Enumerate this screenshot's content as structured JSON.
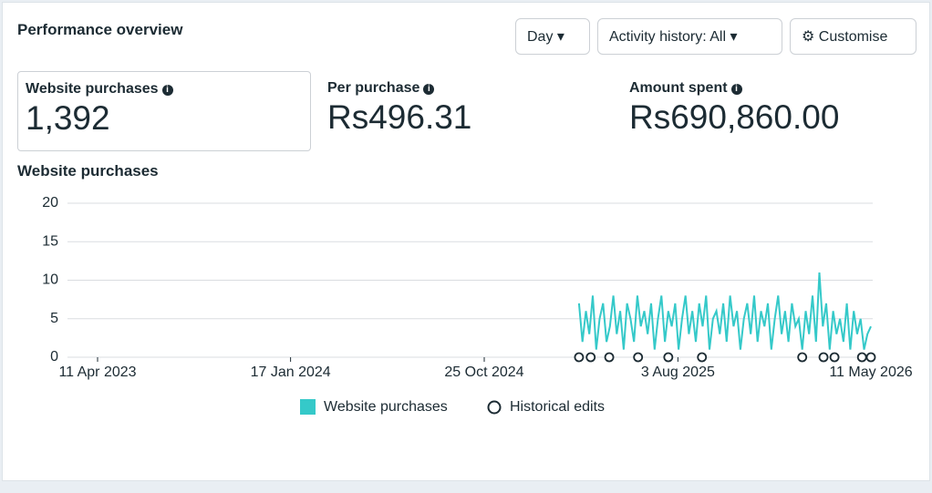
{
  "header": {
    "title": "Performance overview",
    "buttons": [
      "Day",
      "Activity history: All",
      "Customise"
    ]
  },
  "metrics": [
    {
      "label": "Website purchases",
      "value": "1,392"
    },
    {
      "label": "Per purchase",
      "value": "Rs496.31"
    },
    {
      "label": "Amount spent",
      "value": "Rs690,860.00"
    }
  ],
  "chart_data": {
    "type": "line",
    "title": "Website purchases",
    "x": [
      "2025-03-12",
      "2025-03-17",
      "2025-03-22",
      "2025-03-27",
      "2025-04-01",
      "2025-04-06",
      "2025-04-11",
      "2025-04-16",
      "2025-04-21",
      "2025-04-26",
      "2025-05-01",
      "2025-05-06",
      "2025-05-11",
      "2025-05-16",
      "2025-05-21",
      "2025-05-26",
      "2025-05-31",
      "2025-06-05",
      "2025-06-10",
      "2025-06-15",
      "2025-06-20",
      "2025-06-25",
      "2025-06-30",
      "2025-07-05",
      "2025-07-10",
      "2025-07-15",
      "2025-07-20",
      "2025-07-25",
      "2025-07-30",
      "2025-08-04",
      "2025-08-09",
      "2025-08-14",
      "2025-08-19",
      "2025-08-24",
      "2025-08-29",
      "2025-09-03",
      "2025-09-08",
      "2025-09-13",
      "2025-09-18",
      "2025-09-23",
      "2025-09-28",
      "2025-10-03",
      "2025-10-08",
      "2025-10-13",
      "2025-10-18",
      "2025-10-23",
      "2025-10-28",
      "2025-11-02",
      "2025-11-07",
      "2025-11-12",
      "2025-11-17",
      "2025-11-22",
      "2025-11-27",
      "2025-12-02",
      "2025-12-07",
      "2025-12-12",
      "2025-12-17",
      "2025-12-22",
      "2025-12-27",
      "2026-01-01",
      "2026-01-06",
      "2026-01-11",
      "2026-01-16",
      "2026-01-21",
      "2026-01-26",
      "2026-01-31",
      "2026-02-05",
      "2026-02-10",
      "2026-02-15",
      "2026-02-20",
      "2026-02-25",
      "2026-03-02",
      "2026-03-07",
      "2026-03-12",
      "2026-03-17",
      "2026-03-22",
      "2026-03-27",
      "2026-04-01",
      "2026-04-06",
      "2026-04-11",
      "2026-04-16",
      "2026-04-21",
      "2026-04-26",
      "2026-05-01",
      "2026-05-06",
      "2026-05-11"
    ],
    "series": [
      {
        "name": "Website purchases",
        "color": "#35c9c9",
        "values": [
          7,
          2,
          6,
          3,
          8,
          1,
          5,
          7,
          2,
          4,
          8,
          3,
          6,
          1,
          7,
          5,
          2,
          8,
          4,
          6,
          3,
          7,
          1,
          5,
          8,
          2,
          6,
          4,
          7,
          1,
          5,
          8,
          3,
          6,
          2,
          7,
          4,
          8,
          1,
          5,
          6,
          3,
          7,
          2,
          8,
          4,
          6,
          1,
          5,
          7,
          3,
          8,
          2,
          6,
          4,
          7,
          1,
          5,
          8,
          3,
          6,
          2,
          7,
          4,
          5,
          1,
          6,
          3,
          8,
          2,
          11,
          4,
          7,
          1,
          6,
          3,
          5,
          2,
          7,
          1,
          6,
          3,
          5,
          1,
          3,
          4
        ]
      }
    ],
    "edits": {
      "name": "Historical edits",
      "x": [
        "2025-03-12",
        "2025-03-29",
        "2025-04-25",
        "2025-06-06",
        "2025-07-20",
        "2025-09-07",
        "2026-01-31",
        "2026-03-03",
        "2026-03-19",
        "2026-04-28",
        "2026-05-11"
      ]
    },
    "xlim": [
      "2023-04-11",
      "2026-05-11"
    ],
    "xticks": [
      {
        "value": "2023-04-11",
        "label": "11 Apr 2023"
      },
      {
        "value": "2024-01-17",
        "label": "17 Jan 2024"
      },
      {
        "value": "2024-10-25",
        "label": "25 Oct 2024"
      },
      {
        "value": "2025-08-03",
        "label": "3 Aug 2025"
      },
      {
        "value": "2026-05-11",
        "label": "11 May 2026"
      }
    ],
    "ylim": [
      0,
      20
    ],
    "yticks": [
      0,
      5,
      10,
      15,
      20
    ],
    "grid": true
  }
}
